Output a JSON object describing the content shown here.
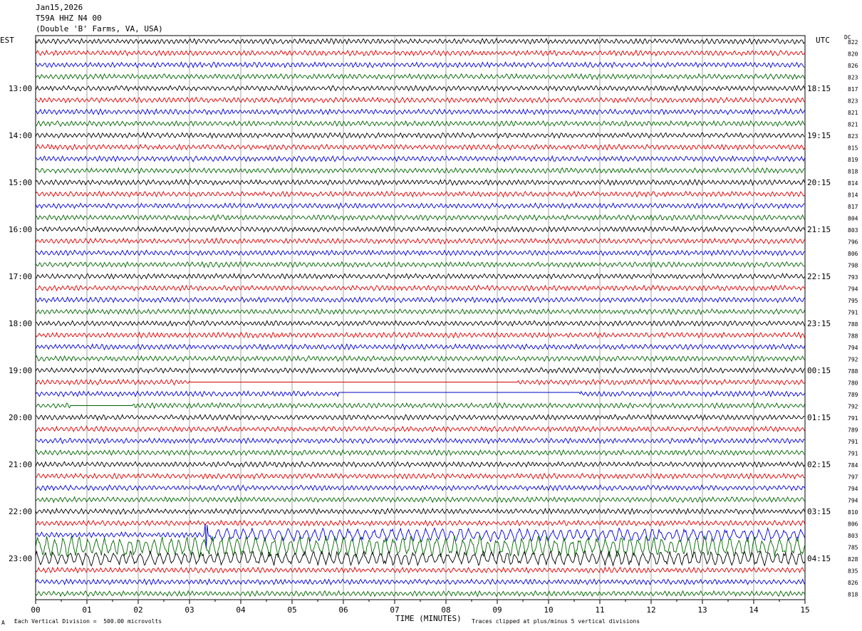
{
  "header": {
    "date": "Jan15,2026",
    "station": "T59A HHZ N4 00",
    "location": "(Double 'B' Farms, VA, USA)"
  },
  "left_axis_label": "EST",
  "right_axis_label": "UTC",
  "dc_label": "DC",
  "footer": {
    "scale_note": "Each Vertical Division =  500.00 microvolts",
    "clip_note": "Traces clipped at plus/minus 5 vertical divisions",
    "corner_mark": "A"
  },
  "colors": {
    "cycle": [
      "#000000",
      "#d40000",
      "#0000c8",
      "#006400"
    ],
    "grid": "#808080"
  },
  "chart_data": {
    "type": "line",
    "xlabel": "TIME (MINUTES)",
    "x_ticks": [
      "00",
      "01",
      "02",
      "03",
      "04",
      "05",
      "06",
      "07",
      "08",
      "09",
      "10",
      "11",
      "12",
      "13",
      "14",
      "15"
    ],
    "xlim": [
      0,
      15
    ],
    "est_labels": [
      "13:00",
      "14:00",
      "15:00",
      "16:00",
      "17:00",
      "18:00",
      "19:00",
      "20:00",
      "21:00",
      "22:00",
      "23:00"
    ],
    "utc_labels": [
      "18:15",
      "19:15",
      "20:15",
      "21:15",
      "22:15",
      "23:15",
      "00:15",
      "01:15",
      "02:15",
      "03:15",
      "04:15"
    ],
    "dc_values": [
      822,
      820,
      826,
      823,
      817,
      823,
      821,
      821,
      823,
      815,
      819,
      818,
      814,
      814,
      817,
      804,
      803,
      796,
      806,
      798,
      793,
      794,
      795,
      791,
      788,
      788,
      794,
      792,
      788,
      780,
      789,
      792,
      791,
      789,
      791,
      791,
      784,
      797,
      794,
      794,
      810,
      806,
      803,
      785,
      828,
      835,
      826,
      818
    ],
    "rows": 48,
    "noise_amplitude_note": "background microseismic noise",
    "gaps": [
      {
        "row": 29,
        "from_min": 3.0,
        "to_min": 5.0
      },
      {
        "row": 29,
        "from_min": 5.0,
        "to_min": 9.4
      },
      {
        "row": 30,
        "from_min": 5.9,
        "to_min": 10.0
      },
      {
        "row": 30,
        "from_min": 10.0,
        "to_min": 10.6
      },
      {
        "row": 31,
        "from_min": 0.7,
        "to_min": 1.9
      }
    ],
    "events": [
      {
        "row": 42,
        "from_min": 3.3,
        "to_min": 15.0
      },
      {
        "row": 43,
        "from_min": 0.0,
        "to_min": 15.0
      },
      {
        "row": 44,
        "from_min": 0.0,
        "to_min": 15.0
      }
    ]
  }
}
